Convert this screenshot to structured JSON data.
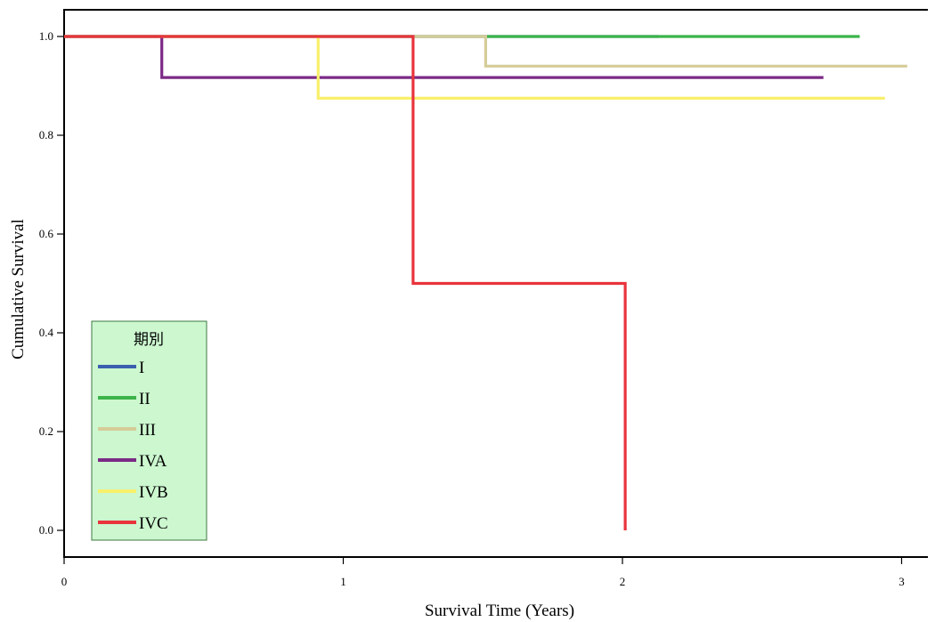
{
  "chart_data": {
    "type": "line",
    "title": "",
    "xlabel": "Survival Time (Years)",
    "ylabel": "Cumulative Survival",
    "xlim": [
      0,
      3.1
    ],
    "ylim": [
      -0.055,
      1.055
    ],
    "x_ticks": [
      0,
      1,
      2,
      3
    ],
    "y_ticks": [
      0.0,
      0.2,
      0.4,
      0.6,
      0.8,
      1.0
    ],
    "x_tick_labels": [
      "0",
      "1",
      "2",
      "3"
    ],
    "y_tick_labels": [
      "0.0",
      "0.2",
      "0.4",
      "0.6",
      "0.8",
      "1.0"
    ],
    "grid": false,
    "step": true,
    "legend": {
      "title": "期別",
      "position": "bottom-left"
    },
    "series": [
      {
        "name": "I",
        "color": "#3a5fae",
        "points": [
          [
            0,
            1.0
          ],
          [
            2.13,
            1.0
          ]
        ]
      },
      {
        "name": "II",
        "color": "#3cb44a",
        "points": [
          [
            0,
            1.0
          ],
          [
            2.85,
            1.0
          ]
        ]
      },
      {
        "name": "III",
        "color": "#d6cc98",
        "points": [
          [
            0,
            1.0
          ],
          [
            1.51,
            1.0
          ],
          [
            1.51,
            0.94
          ],
          [
            3.02,
            0.94
          ]
        ]
      },
      {
        "name": "IVA",
        "color": "#7b2a86",
        "points": [
          [
            0,
            1.0
          ],
          [
            0.35,
            1.0
          ],
          [
            0.35,
            0.917
          ],
          [
            2.72,
            0.917
          ]
        ]
      },
      {
        "name": "IVB",
        "color": "#f8f06a",
        "points": [
          [
            0,
            1.0
          ],
          [
            0.91,
            1.0
          ],
          [
            0.91,
            0.875
          ],
          [
            2.94,
            0.875
          ]
        ]
      },
      {
        "name": "IVC",
        "color": "#e8343c",
        "points": [
          [
            0,
            1.0
          ],
          [
            1.25,
            1.0
          ],
          [
            1.25,
            0.5
          ],
          [
            2.01,
            0.5
          ],
          [
            2.01,
            0.0
          ]
        ]
      }
    ]
  }
}
